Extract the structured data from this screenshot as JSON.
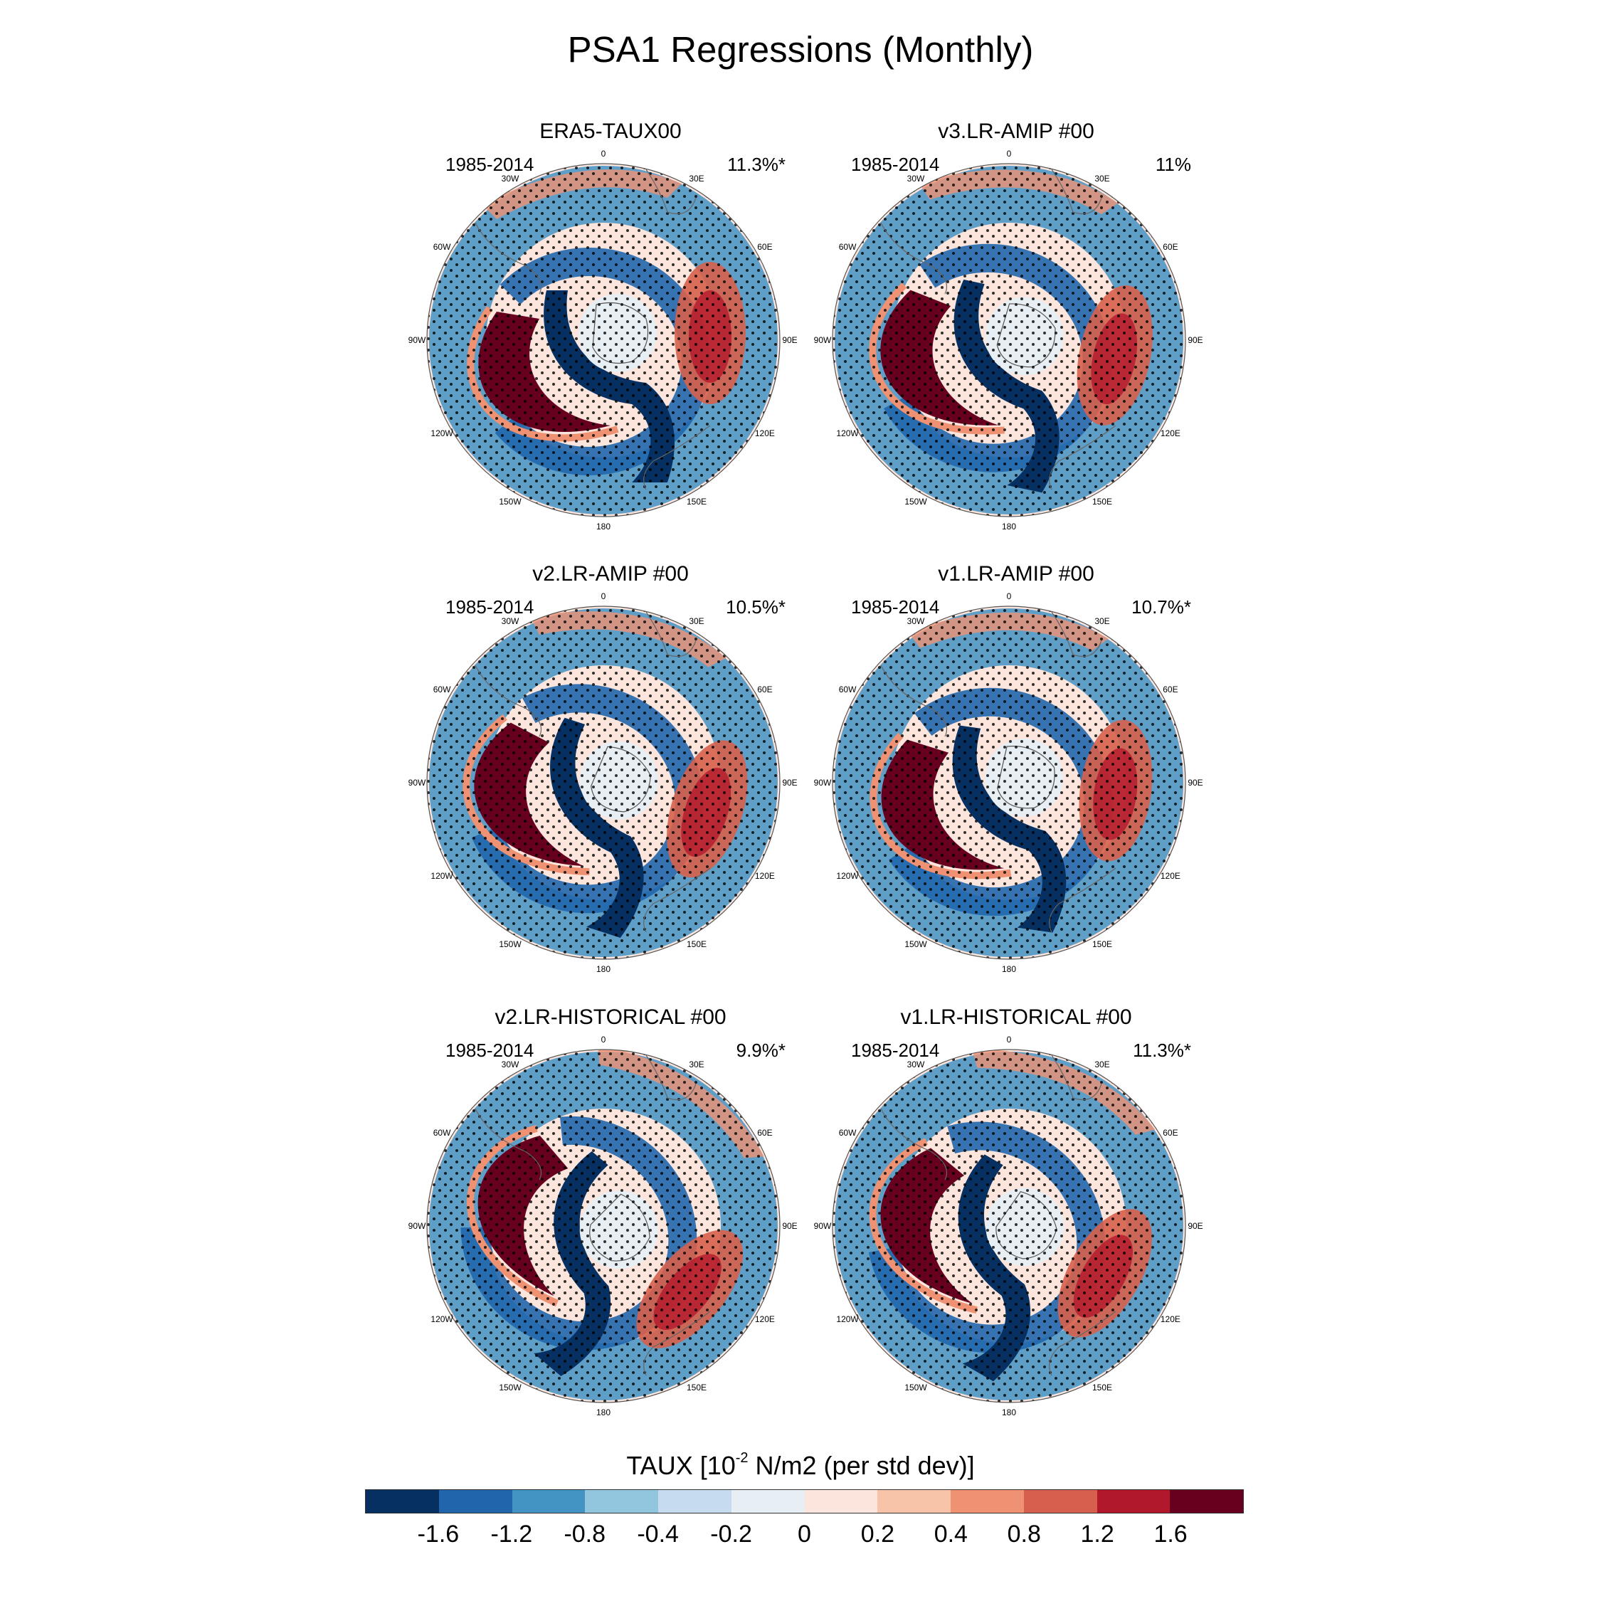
{
  "title": "PSA1 Regressions (Monthly)",
  "panels": [
    {
      "title": "ERA5-TAUX00",
      "period": "1985-2014",
      "pct": "11.3%*",
      "rot": 0
    },
    {
      "title": "v3.LR-AMIP  #00",
      "period": "1985-2014",
      "pct": "11%",
      "rot": 12
    },
    {
      "title": "v2.LR-AMIP  #00",
      "period": "1985-2014",
      "pct": "10.5%*",
      "rot": 18
    },
    {
      "title": "v1.LR-AMIP  #00",
      "period": "1985-2014",
      "pct": "10.7%*",
      "rot": 8
    },
    {
      "title": "v2.LR-HISTORICAL  #00",
      "period": "1985-2014",
      "pct": "9.9%*",
      "rot": 40
    },
    {
      "title": "v1.LR-HISTORICAL  #00",
      "period": "1985-2014",
      "pct": "11.3%*",
      "rot": 30
    }
  ],
  "longitude_labels": [
    "0",
    "30E",
    "60E",
    "90E",
    "120E",
    "150E",
    "180",
    "150W",
    "120W",
    "90W",
    "60W",
    "30W"
  ],
  "colorbar": {
    "title_prefix": "TAUX [10",
    "title_exponent": "-2",
    "title_suffix": " N/m2 (per std dev)]",
    "colors": [
      "#053061",
      "#2166ac",
      "#4393c3",
      "#92c5de",
      "#c6dbef",
      "#e8eff4",
      "#fbe5dc",
      "#f7c3a9",
      "#ef9173",
      "#d6604d",
      "#b2182b",
      "#67001f"
    ],
    "ticks": [
      "-1.6",
      "-1.2",
      "-0.8",
      "-0.4",
      "-0.2",
      "0",
      "0.2",
      "0.4",
      "0.8",
      "1.2",
      "1.6"
    ]
  },
  "palette": {
    "neg_strong": "#053061",
    "neg_mid": "#2166ac",
    "neg_light": "#4393c3",
    "neg_pale": "#c6dbef",
    "pos_pale": "#fbe5dc",
    "pos_light": "#ef9173",
    "pos_mid": "#d6604d",
    "pos_strong": "#67001f"
  }
}
